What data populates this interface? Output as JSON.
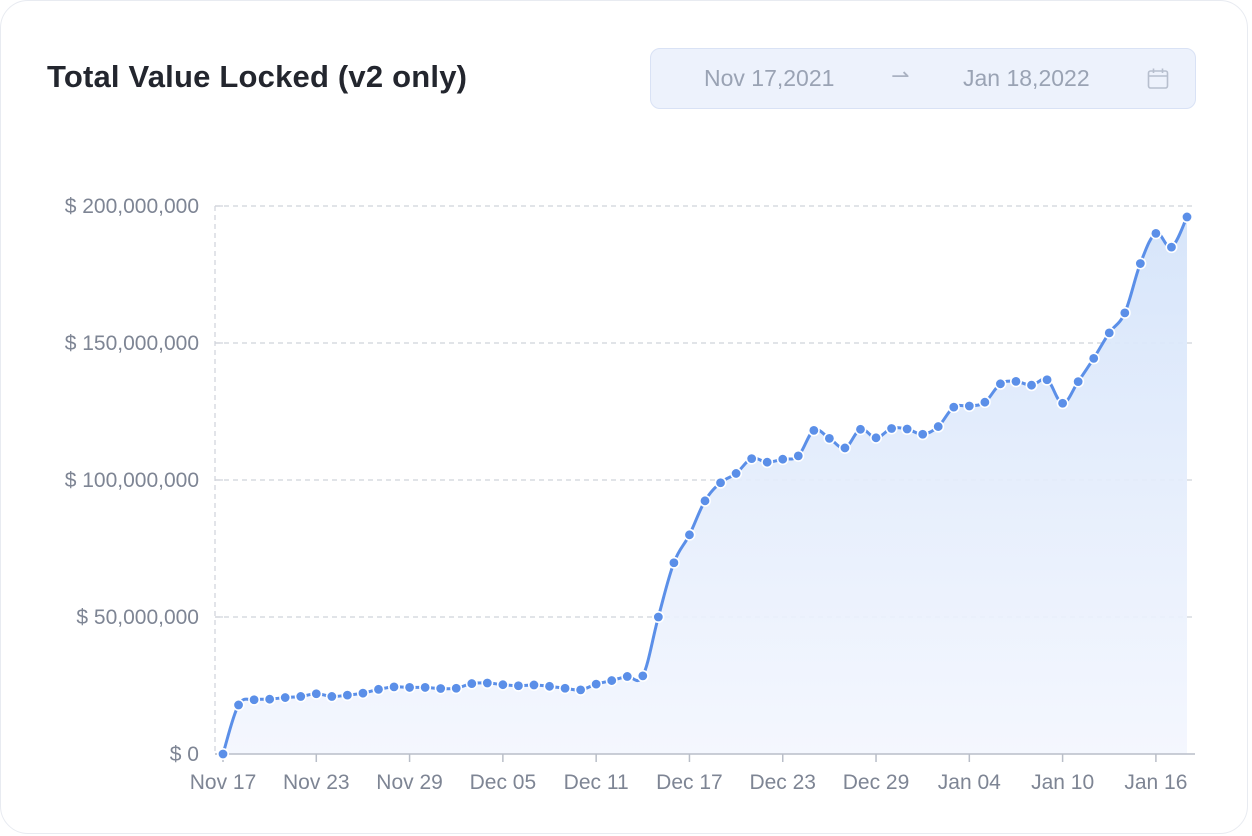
{
  "header": {
    "title": "Total Value Locked (v2 only)",
    "date_range": {
      "start": "Nov 17,2021",
      "arrow": "⇀",
      "end": "Jan 18,2022"
    }
  },
  "colors": {
    "line": "#5b8fe8",
    "fill": "#dbe7fb",
    "grid": "#cfd3da",
    "text": "#7e8594"
  },
  "chart_data": {
    "type": "area",
    "title": "Total Value Locked (v2 only)",
    "xlabel": "",
    "ylabel": "",
    "y_ticks": [
      0,
      50000000,
      100000000,
      150000000,
      200000000
    ],
    "y_tick_labels": [
      "$ 0",
      "$ 50,000,000",
      "$ 100,000,000",
      "$ 150,000,000",
      "$ 200,000,000"
    ],
    "x_ticks": [
      0,
      6,
      12,
      18,
      24,
      30,
      36,
      42,
      48,
      54,
      60
    ],
    "x_tick_labels": [
      "Nov 17",
      "Nov 23",
      "Nov 29",
      "Dec 05",
      "Dec 11",
      "Dec 17",
      "Dec 23",
      "Dec 29",
      "Jan 04",
      "Jan 10",
      "Jan 16"
    ],
    "ylim": [
      0,
      200000000
    ],
    "x_start": "Nov 17, 2021",
    "x_end": "Jan 18, 2022",
    "grid": true,
    "series": [
      {
        "values": [
          0,
          17900000,
          19800000,
          20000000,
          20600000,
          21000000,
          22000000,
          21000000,
          21500000,
          22200000,
          23600000,
          24500000,
          24300000,
          24300000,
          23900000,
          24000000,
          25700000,
          25900000,
          25300000,
          24900000,
          25200000,
          24700000,
          24000000,
          23400000,
          25500000,
          26800000,
          28300000,
          28500000,
          50000000,
          69800000,
          80000000,
          92400000,
          99000000,
          102400000,
          107800000,
          106500000,
          107600000,
          108800000,
          118100000,
          115200000,
          111700000,
          118500000,
          115400000,
          118800000,
          118600000,
          116700000,
          119500000,
          126600000,
          127000000,
          128400000,
          135100000,
          136000000,
          134600000,
          136600000,
          128000000,
          135900000,
          144400000,
          153700000,
          161000000,
          179000000,
          190000000,
          185000000,
          196000000
        ]
      }
    ]
  }
}
